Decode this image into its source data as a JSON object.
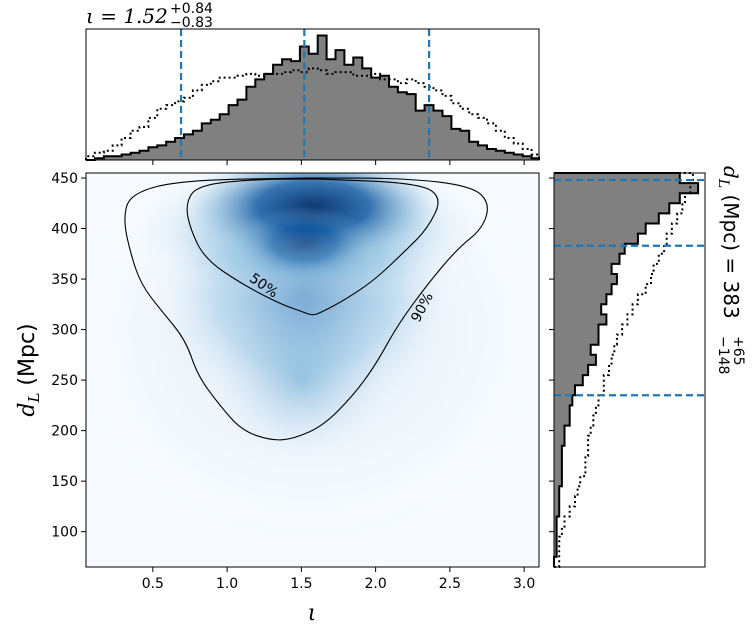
{
  "chart_data": {
    "type": "joint-posterior",
    "main_panel": {
      "type": "heatmap",
      "colormap": "Blues",
      "xlabel": "ι",
      "ylabel_math": "d",
      "ylabel_sub": "L",
      "ylabel_unit": "(Mpc)",
      "xlim": [
        0.05,
        3.1
      ],
      "ylim": [
        65,
        455
      ],
      "xticks": [
        0.5,
        1.0,
        1.5,
        2.0,
        2.5,
        3.0
      ],
      "xtick_labels": [
        "0.5",
        "1.0",
        "1.5",
        "2.0",
        "2.5",
        "3.0"
      ],
      "yticks": [
        100,
        150,
        200,
        250,
        300,
        350,
        400,
        450
      ],
      "ytick_labels": [
        "100",
        "150",
        "200",
        "250",
        "300",
        "350",
        "400",
        "450"
      ],
      "density_peak": {
        "x": 1.58,
        "y": 422
      },
      "contours": [
        {
          "label": "50%",
          "points": [
            [
              1.62,
              449
            ],
            [
              2.3,
              445
            ],
            [
              2.45,
              430
            ],
            [
              2.35,
              400
            ],
            [
              2.2,
              378
            ],
            [
              2.0,
              350
            ],
            [
              1.8,
              330
            ],
            [
              1.62,
              316
            ],
            [
              1.57,
              314
            ],
            [
              1.5,
              318
            ],
            [
              1.35,
              326
            ],
            [
              1.1,
              345
            ],
            [
              0.85,
              370
            ],
            [
              0.75,
              400
            ],
            [
              0.72,
              425
            ],
            [
              0.8,
              443
            ],
            [
              1.2,
              449
            ],
            [
              1.62,
              449
            ]
          ]
        },
        {
          "label": "90%",
          "points": [
            [
              1.55,
              450
            ],
            [
              2.2,
              450
            ],
            [
              2.65,
              442
            ],
            [
              2.77,
              425
            ],
            [
              2.72,
              400
            ],
            [
              2.55,
              380
            ],
            [
              2.35,
              345
            ],
            [
              2.15,
              305
            ],
            [
              2.0,
              265
            ],
            [
              1.85,
              235
            ],
            [
              1.65,
              205
            ],
            [
              1.45,
              192
            ],
            [
              1.3,
              190
            ],
            [
              1.1,
              200
            ],
            [
              0.95,
              225
            ],
            [
              0.8,
              255
            ],
            [
              0.72,
              290
            ],
            [
              0.55,
              320
            ],
            [
              0.42,
              345
            ],
            [
              0.35,
              375
            ],
            [
              0.3,
              410
            ],
            [
              0.35,
              435
            ],
            [
              0.7,
              448
            ],
            [
              1.55,
              450
            ]
          ]
        }
      ]
    },
    "top_panel": {
      "type": "histogram",
      "title_main": "ι = 1.52",
      "title_sup": "+0.84",
      "title_sub": "−0.83",
      "median": 1.52,
      "quantile_lines": [
        0.69,
        1.52,
        2.36
      ],
      "bins_x": [
        0.05,
        0.11,
        0.17,
        0.23,
        0.29,
        0.35,
        0.41,
        0.47,
        0.53,
        0.59,
        0.65,
        0.71,
        0.77,
        0.83,
        0.89,
        0.95,
        1.01,
        1.07,
        1.13,
        1.19,
        1.25,
        1.31,
        1.37,
        1.43,
        1.49,
        1.55,
        1.61,
        1.67,
        1.73,
        1.79,
        1.85,
        1.91,
        1.97,
        2.03,
        2.09,
        2.15,
        2.21,
        2.27,
        2.33,
        2.39,
        2.45,
        2.51,
        2.57,
        2.63,
        2.69,
        2.75,
        2.81,
        2.87,
        2.93,
        2.99,
        3.05,
        3.1
      ],
      "posterior_counts": [
        0,
        1,
        2,
        2,
        3,
        4,
        5,
        7,
        8,
        10,
        12,
        14,
        16,
        20,
        22,
        25,
        30,
        33,
        40,
        44,
        47,
        52,
        55,
        54,
        62,
        58,
        68,
        55,
        60,
        52,
        56,
        50,
        45,
        46,
        40,
        37,
        36,
        27,
        30,
        27,
        24,
        17,
        16,
        10,
        8,
        6,
        5,
        4,
        3,
        2,
        1
      ],
      "prior_counts": [
        2,
        4,
        5,
        8,
        12,
        16,
        18,
        23,
        28,
        30,
        32,
        34,
        38,
        41,
        43,
        45,
        45,
        46,
        47,
        46,
        47,
        47,
        48,
        49,
        48,
        50,
        49,
        47,
        48,
        48,
        46,
        46,
        47,
        44,
        44,
        42,
        44,
        42,
        40,
        38,
        35,
        31,
        28,
        25,
        23,
        20,
        16,
        12,
        9,
        6,
        3
      ]
    },
    "right_panel": {
      "type": "histogram",
      "orientation": "horizontal",
      "title_math": "d",
      "title_sub": "L",
      "title_rest": " (Mpc) = 383",
      "title_sup": "+65",
      "title_sub2": "−148",
      "median": 383,
      "quantile_lines": [
        235,
        383,
        448
      ],
      "bins_y": [
        65,
        75,
        85,
        95,
        105,
        115,
        125,
        135,
        145,
        155,
        165,
        175,
        185,
        195,
        205,
        215,
        225,
        235,
        245,
        255,
        265,
        275,
        285,
        295,
        305,
        315,
        325,
        335,
        345,
        355,
        365,
        375,
        385,
        395,
        405,
        415,
        425,
        435,
        445,
        455
      ],
      "posterior_counts": [
        0,
        1,
        1,
        1,
        1,
        2,
        2,
        2,
        3,
        3,
        3,
        3,
        4,
        4,
        6,
        6,
        7,
        8,
        11,
        13,
        16,
        14,
        17,
        17,
        20,
        18,
        20,
        22,
        24,
        22,
        25,
        27,
        32,
        35,
        40,
        44,
        48,
        55,
        48
      ],
      "prior_counts": [
        2,
        2,
        2,
        3,
        4,
        6,
        8,
        9,
        10,
        12,
        12,
        13,
        13,
        14,
        15,
        16,
        17,
        19,
        19,
        21,
        22,
        23,
        24,
        26,
        28,
        30,
        32,
        35,
        37,
        38,
        40,
        42,
        43,
        45,
        47,
        49,
        50,
        52,
        53
      ]
    }
  }
}
